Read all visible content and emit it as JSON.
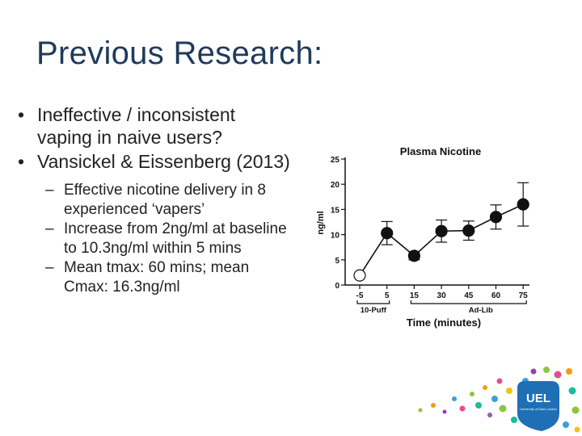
{
  "slide": {
    "title": "Previous Research:",
    "bullets": [
      {
        "text": "Ineffective / inconsistent vaping in naive users?",
        "subs": []
      },
      {
        "text": "Vansickel & Eissenberg (2013)",
        "subs": [
          "Effective nicotine delivery in 8 experienced ‘vapers’",
          "Increase from 2ng/ml at baseline to 10.3ng/ml within 5 mins",
          "Mean tmax: 60 mins; mean Cmax: 16.3ng/ml"
        ]
      }
    ]
  },
  "chart_data": {
    "type": "line",
    "title": "Plasma Nicotine",
    "xlabel": "Time (minutes)",
    "ylabel": "ng/ml",
    "x": [
      "-5",
      "5",
      "15",
      "30",
      "45",
      "60",
      "75"
    ],
    "y": [
      1.9,
      10.3,
      5.8,
      10.7,
      10.8,
      13.5,
      16.0
    ],
    "error": [
      0.5,
      2.3,
      0.8,
      2.2,
      1.9,
      2.4,
      4.3
    ],
    "ylim": [
      0,
      25
    ],
    "yticks": [
      "0",
      "5",
      "10",
      "15",
      "20",
      "25"
    ],
    "phase_labels": [
      "10-Puff",
      "Ad-Lib"
    ],
    "marker_colors": {
      "baseline": "#ffffff",
      "filled": "#111111"
    }
  },
  "logo": {
    "name": "UEL",
    "text": "UEL",
    "subtext": "University of East London",
    "color": "#1f6fb5"
  }
}
